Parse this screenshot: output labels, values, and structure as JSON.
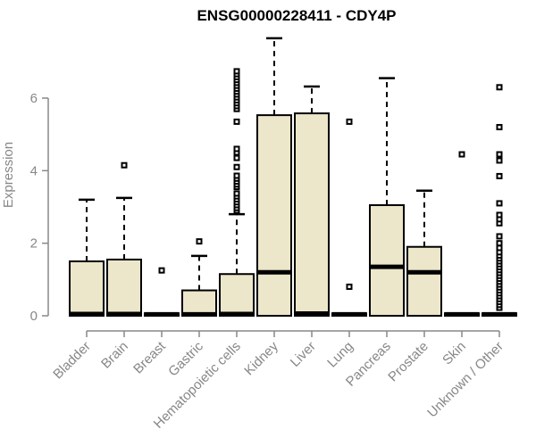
{
  "header": {
    "title": "ENSG00000228411 - CDY4P"
  },
  "chart_data": {
    "type": "boxplot",
    "title": "ENSG00000228411 - CDY4P",
    "xlabel": "",
    "ylabel": "Expression",
    "yticks": [
      0,
      2,
      4,
      6
    ],
    "ylim": [
      0,
      7.8
    ],
    "grid": false,
    "legend": "none",
    "colors": {
      "box_fill": "#ECE6CA",
      "box_stroke": "#000000",
      "median": "#000000",
      "whisker": "#000000",
      "outlier_stroke": "#000000",
      "outlier_fill": "#ffffff",
      "axis": "#888888",
      "tick_label": "#878787",
      "title": "#000000",
      "background": "#ffffff"
    },
    "categories": [
      "Bladder",
      "Brain",
      "Breast",
      "Gastric",
      "Hematopoietic cells",
      "Kidney",
      "Liver",
      "Lung",
      "Pancreas",
      "Prostate",
      "Skin",
      "Unknown / Other"
    ],
    "series": [
      {
        "category": "Bladder",
        "whisker_low": 0,
        "q1": 0,
        "median": 0.05,
        "q3": 1.5,
        "whisker_high": 3.2,
        "outliers": []
      },
      {
        "category": "Brain",
        "whisker_low": 0,
        "q1": 0,
        "median": 0.05,
        "q3": 1.55,
        "whisker_high": 3.25,
        "outliers": [
          4.15
        ]
      },
      {
        "category": "Breast",
        "whisker_low": 0,
        "q1": 0,
        "median": 0.04,
        "q3": 0.07,
        "whisker_high": 0.07,
        "outliers": [
          1.25
        ]
      },
      {
        "category": "Gastric",
        "whisker_low": 0,
        "q1": 0,
        "median": 0.04,
        "q3": 0.7,
        "whisker_high": 1.65,
        "outliers": [
          2.05
        ]
      },
      {
        "category": "Hematopoietic cells",
        "whisker_low": 0,
        "q1": 0,
        "median": 0.05,
        "q3": 1.15,
        "whisker_high": 2.8,
        "outliers": [
          2.9,
          2.97,
          3.05,
          3.13,
          3.21,
          3.29,
          3.37,
          3.55,
          3.62,
          3.7,
          3.78,
          3.86,
          4.1,
          4.35,
          4.5,
          4.6,
          5.35,
          5.7,
          5.78,
          5.86,
          5.94,
          6.02,
          6.1,
          6.18,
          6.26,
          6.34,
          6.42,
          6.5,
          6.58,
          6.66,
          6.74
        ]
      },
      {
        "category": "Kidney",
        "whisker_low": 0,
        "q1": 0,
        "median": 1.2,
        "q3": 5.53,
        "whisker_high": 7.65,
        "outliers": []
      },
      {
        "category": "Liver",
        "whisker_low": 0,
        "q1": 0,
        "median": 0.06,
        "q3": 5.58,
        "whisker_high": 6.32,
        "outliers": []
      },
      {
        "category": "Lung",
        "whisker_low": 0,
        "q1": 0,
        "median": 0.04,
        "q3": 0.07,
        "whisker_high": 0.07,
        "outliers": [
          0.8,
          5.35
        ]
      },
      {
        "category": "Pancreas",
        "whisker_low": 0,
        "q1": 0,
        "median": 1.35,
        "q3": 3.05,
        "whisker_high": 6.55,
        "outliers": []
      },
      {
        "category": "Prostate",
        "whisker_low": 0,
        "q1": 0,
        "median": 1.2,
        "q3": 1.9,
        "whisker_high": 3.45,
        "outliers": []
      },
      {
        "category": "Skin",
        "whisker_low": 0,
        "q1": 0,
        "median": 0.04,
        "q3": 0.07,
        "whisker_high": 0.07,
        "outliers": [
          4.45
        ]
      },
      {
        "category": "Unknown / Other",
        "whisker_low": 0,
        "q1": 0,
        "median": 0.04,
        "q3": 0.07,
        "whisker_high": 0.07,
        "outliers": [
          0.22,
          0.3,
          0.38,
          0.46,
          0.54,
          0.62,
          0.7,
          0.78,
          0.86,
          0.94,
          1.02,
          1.1,
          1.18,
          1.26,
          1.34,
          1.42,
          1.5,
          1.58,
          1.66,
          1.75,
          1.87,
          2.0,
          2.19,
          2.55,
          2.66,
          2.78,
          3.1,
          3.85,
          4.28,
          4.45,
          5.2,
          6.3
        ]
      }
    ]
  }
}
